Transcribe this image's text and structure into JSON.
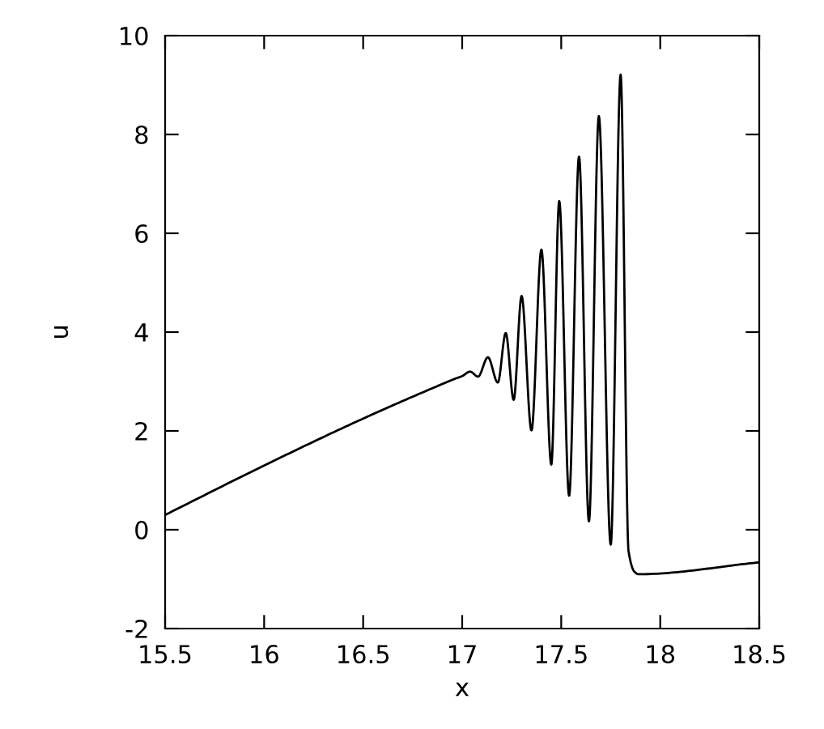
{
  "chart_data": {
    "type": "line",
    "xlabel": "x",
    "ylabel": "u",
    "xlim": [
      15.5,
      18.5
    ],
    "ylim": [
      -2,
      10
    ],
    "xticks": [
      {
        "value": 15.5,
        "label": "15.5"
      },
      {
        "value": 16,
        "label": "16"
      },
      {
        "value": 16.5,
        "label": "16.5"
      },
      {
        "value": 17,
        "label": "17"
      },
      {
        "value": 17.5,
        "label": "17.5"
      },
      {
        "value": 18,
        "label": "18"
      },
      {
        "value": 18.5,
        "label": "18.5"
      }
    ],
    "yticks": [
      -2,
      0,
      2,
      4,
      6,
      8,
      10
    ],
    "grid": false,
    "legend": false,
    "marker": "none",
    "line_style": "solid",
    "series": [
      {
        "color": "#000000",
        "x": [
          15.5,
          16.0,
          16.5,
          16.9,
          16.96,
          17.0,
          17.04,
          17.08,
          17.13,
          17.18,
          17.22,
          17.26,
          17.3,
          17.35,
          17.4,
          17.45,
          17.49,
          17.54,
          17.59,
          17.64,
          17.69,
          17.75,
          17.8,
          17.84,
          17.87,
          17.89,
          18.5
        ],
        "values": [
          0.3,
          1.3,
          2.25,
          2.95,
          3.05,
          3.11,
          3.2,
          3.1,
          3.49,
          2.98,
          3.98,
          2.63,
          4.73,
          2.01,
          5.67,
          1.32,
          6.65,
          0.69,
          7.55,
          0.17,
          8.37,
          -0.3,
          9.21,
          -0.43,
          -0.85,
          -0.9,
          -0.66
        ]
      }
    ]
  }
}
